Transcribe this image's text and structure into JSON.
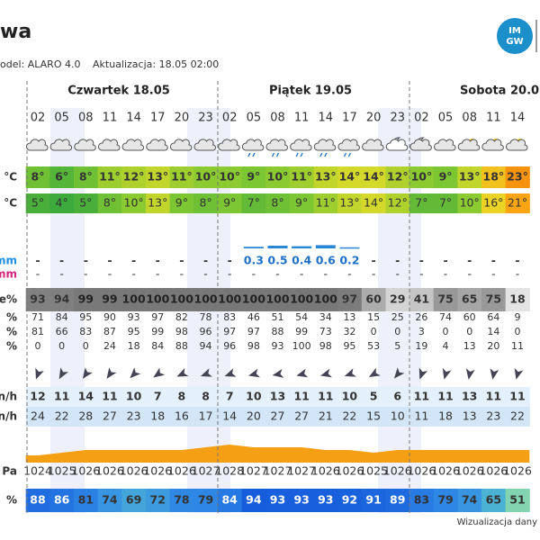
{
  "header": {
    "title": "wa",
    "model": "odel: ALARO 4.0",
    "updated": "Aktualizacja: 18.05 02:00",
    "logo": [
      "IM",
      "GW"
    ]
  },
  "days": [
    "Czwartek 18.05",
    "Piątek 19.05",
    "Sobota 20.0"
  ],
  "hours": [
    "02",
    "05",
    "08",
    "11",
    "14",
    "17",
    "20",
    "23",
    "02",
    "05",
    "08",
    "11",
    "14",
    "17",
    "20",
    "23",
    "02",
    "05",
    "08",
    "11",
    "14"
  ],
  "rows": {
    "temperature": {
      "label": "°C",
      "cells": [
        "8°",
        "6°",
        "8°",
        "11°",
        "12°",
        "13°",
        "11°",
        "10°",
        "10°",
        "9°",
        "10°",
        "11°",
        "13°",
        "14°",
        "14°",
        "12°",
        "10°",
        "9°",
        "13°",
        "18°",
        "23°"
      ]
    },
    "feels_like": {
      "label": "°C",
      "cells": [
        "5°",
        "4°",
        "5°",
        "8°",
        "10°",
        "13°",
        "9°",
        "8°",
        "9°",
        "7°",
        "8°",
        "9°",
        "11°",
        "13°",
        "14°",
        "12°",
        "7°",
        "7°",
        "10°",
        "16°",
        "21°"
      ]
    },
    "rain": {
      "label": "mm",
      "cells": [
        "-",
        "-",
        "-",
        "-",
        "-",
        "-",
        "-",
        "-",
        "-",
        "0.3",
        "0.5",
        "0.4",
        "0.6",
        "0.2",
        "-",
        "-",
        "-",
        "-",
        "-",
        "-",
        "-"
      ]
    },
    "snow": {
      "label": "mm",
      "cells": [
        "-",
        "-",
        "-",
        "-",
        "-",
        "-",
        "-",
        "-",
        "-",
        "-",
        "-",
        "-",
        "-",
        "-",
        "-",
        "-",
        "-",
        "-",
        "-",
        "-",
        "-"
      ]
    },
    "cloud_total": {
      "label": "e%",
      "cells": [
        "93",
        "94",
        "99",
        "99",
        "100",
        "100",
        "100",
        "100",
        "100",
        "100",
        "100",
        "100",
        "100",
        "97",
        "60",
        "29",
        "41",
        "75",
        "65",
        "75",
        "18"
      ]
    },
    "cloud_low": {
      "label": "%",
      "cells": [
        "71",
        "84",
        "95",
        "90",
        "93",
        "97",
        "82",
        "78",
        "83",
        "46",
        "51",
        "54",
        "34",
        "13",
        "15",
        "25",
        "26",
        "74",
        "60",
        "64",
        "9"
      ]
    },
    "cloud_mid": {
      "label": "%",
      "cells": [
        "81",
        "66",
        "83",
        "87",
        "95",
        "99",
        "98",
        "96",
        "97",
        "97",
        "88",
        "99",
        "73",
        "32",
        "0",
        "0",
        "3",
        "0",
        "0",
        "14",
        "0"
      ]
    },
    "cloud_high": {
      "label": "%",
      "cells": [
        "0",
        "0",
        "0",
        "24",
        "18",
        "84",
        "88",
        "94",
        "96",
        "98",
        "93",
        "100",
        "98",
        "95",
        "53",
        "5",
        "19",
        "4",
        "13",
        "20",
        "11"
      ]
    },
    "wind": {
      "label": "n/h",
      "cells": [
        "12",
        "11",
        "14",
        "11",
        "10",
        "7",
        "8",
        "8",
        "7",
        "10",
        "13",
        "11",
        "11",
        "10",
        "5",
        "6",
        "11",
        "11",
        "13",
        "11",
        "11"
      ]
    },
    "gust": {
      "label": "n/h",
      "cells": [
        "24",
        "22",
        "28",
        "27",
        "23",
        "18",
        "16",
        "17",
        "14",
        "20",
        "27",
        "27",
        "21",
        "22",
        "15",
        "10",
        "11",
        "18",
        "13",
        "23",
        "22"
      ]
    },
    "pressure": {
      "label": "Pa",
      "cells": [
        "1024",
        "1025",
        "1026",
        "1026",
        "1026",
        "1026",
        "1026",
        "1027",
        "1028",
        "1027",
        "1027",
        "1027",
        "1026",
        "1026",
        "1025",
        "1026",
        "1026",
        "1026",
        "1026",
        "1026",
        "1026"
      ]
    },
    "humidity": {
      "label": "%",
      "cells": [
        "88",
        "86",
        "81",
        "74",
        "69",
        "72",
        "78",
        "79",
        "84",
        "94",
        "93",
        "93",
        "93",
        "92",
        "91",
        "89",
        "83",
        "79",
        "74",
        "65",
        "51"
      ]
    }
  },
  "footer": "Wizualizacja dany"
}
